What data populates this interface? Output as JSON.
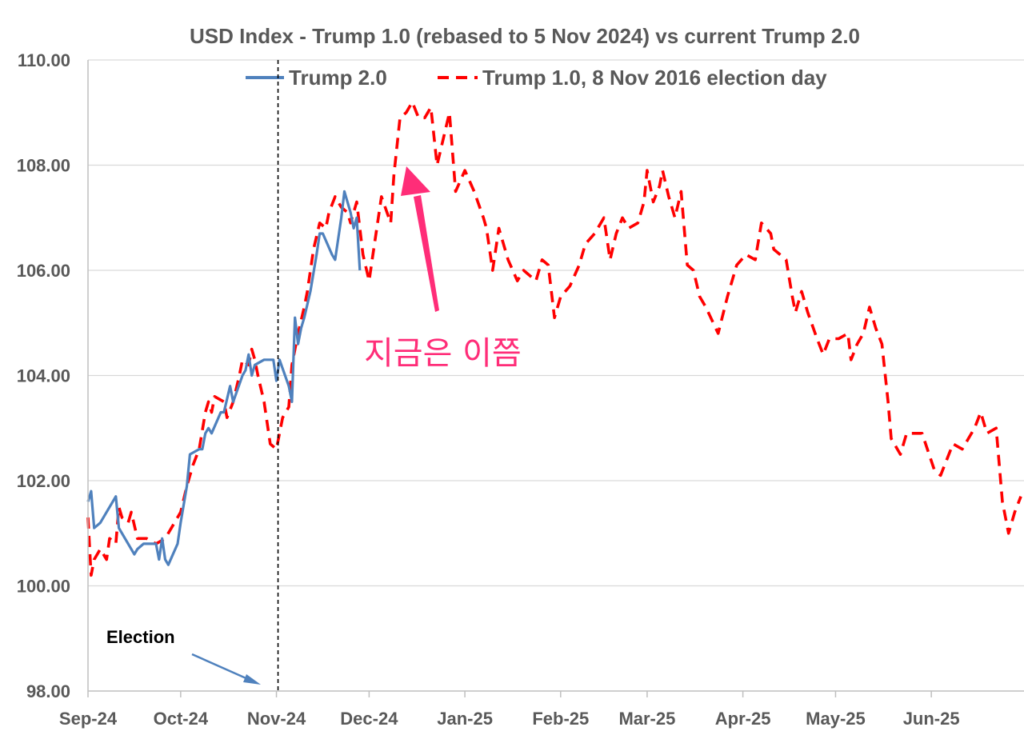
{
  "chart_data": {
    "type": "line",
    "title": "USD Index - Trump 1.0  (rebased to 5 Nov 2024) vs current Trump 2.0",
    "xlabel": "",
    "ylabel": "",
    "ylim": [
      98,
      110
    ],
    "y_ticks": [
      "98.00",
      "100.00",
      "102.00",
      "104.00",
      "106.00",
      "108.00",
      "110.00"
    ],
    "x_ticks": [
      "Sep-24",
      "Oct-24",
      "Nov-24",
      "Dec-24",
      "Jan-25",
      "Feb-25",
      "Mar-25",
      "Apr-25",
      "May-25",
      "Jun-25"
    ],
    "x_tick_dates": [
      "2024-09-01",
      "2024-10-01",
      "2024-11-01",
      "2024-12-01",
      "2025-01-01",
      "2025-02-01",
      "2025-03-01",
      "2025-04-01",
      "2025-05-01",
      "2025-06-01"
    ],
    "xlim": [
      "2024-09-01",
      "2025-06-30"
    ],
    "grid": true,
    "legend_position": "top",
    "series": [
      {
        "name": "Trump 2.0",
        "style": "solid",
        "color": "#4f81bd",
        "points": [
          [
            "2024-09-01",
            101.6
          ],
          [
            "2024-09-02",
            101.8
          ],
          [
            "2024-09-03",
            101.1
          ],
          [
            "2024-09-05",
            101.2
          ],
          [
            "2024-09-09",
            101.6
          ],
          [
            "2024-09-10",
            101.7
          ],
          [
            "2024-09-11",
            101.1
          ],
          [
            "2024-09-13",
            100.9
          ],
          [
            "2024-09-14",
            100.8
          ],
          [
            "2024-09-16",
            100.6
          ],
          [
            "2024-09-17",
            100.7
          ],
          [
            "2024-09-19",
            100.8
          ],
          [
            "2024-09-23",
            100.8
          ],
          [
            "2024-09-24",
            100.5
          ],
          [
            "2024-09-25",
            100.9
          ],
          [
            "2024-09-26",
            100.5
          ],
          [
            "2024-09-27",
            100.4
          ],
          [
            "2024-09-30",
            100.8
          ],
          [
            "2024-10-01",
            101.2
          ],
          [
            "2024-10-03",
            101.9
          ],
          [
            "2024-10-04",
            102.5
          ],
          [
            "2024-10-07",
            102.6
          ],
          [
            "2024-10-08",
            102.6
          ],
          [
            "2024-10-09",
            102.9
          ],
          [
            "2024-10-10",
            103.0
          ],
          [
            "2024-10-11",
            102.9
          ],
          [
            "2024-10-14",
            103.3
          ],
          [
            "2024-10-15",
            103.3
          ],
          [
            "2024-10-17",
            103.8
          ],
          [
            "2024-10-18",
            103.5
          ],
          [
            "2024-10-21",
            104.0
          ],
          [
            "2024-10-22",
            104.1
          ],
          [
            "2024-10-23",
            104.4
          ],
          [
            "2024-10-24",
            104.0
          ],
          [
            "2024-10-25",
            104.2
          ],
          [
            "2024-10-28",
            104.3
          ],
          [
            "2024-10-31",
            104.3
          ],
          [
            "2024-11-01",
            103.9
          ],
          [
            "2024-11-02",
            104.3
          ],
          [
            "2024-11-05",
            103.8
          ],
          [
            "2024-11-06",
            103.5
          ],
          [
            "2024-11-07",
            105.1
          ],
          [
            "2024-11-08",
            104.6
          ],
          [
            "2024-11-09",
            104.9
          ],
          [
            "2024-11-10",
            105.1
          ],
          [
            "2024-11-12",
            105.6
          ],
          [
            "2024-11-14",
            106.3
          ],
          [
            "2024-11-15",
            106.7
          ],
          [
            "2024-11-16",
            106.7
          ],
          [
            "2024-11-19",
            106.3
          ],
          [
            "2024-11-20",
            106.2
          ],
          [
            "2024-11-22",
            107.0
          ],
          [
            "2024-11-23",
            107.5
          ],
          [
            "2024-11-25",
            107.1
          ],
          [
            "2024-11-26",
            106.8
          ],
          [
            "2024-11-27",
            107.0
          ],
          [
            "2024-11-28",
            106.0
          ]
        ]
      },
      {
        "name": "Trump 1.0, 8 Nov 2016 election day",
        "style": "dashed",
        "color": "#ff0000",
        "points": [
          [
            "2024-09-01",
            101.3
          ],
          [
            "2024-09-02",
            100.2
          ],
          [
            "2024-09-03",
            100.5
          ],
          [
            "2024-09-05",
            100.7
          ],
          [
            "2024-09-07",
            100.5
          ],
          [
            "2024-09-08",
            100.9
          ],
          [
            "2024-09-10",
            100.8
          ],
          [
            "2024-09-11",
            101.5
          ],
          [
            "2024-09-12",
            101.3
          ],
          [
            "2024-09-14",
            101.2
          ],
          [
            "2024-09-15",
            101.4
          ],
          [
            "2024-09-17",
            100.9
          ],
          [
            "2024-09-20",
            100.9
          ],
          [
            "2024-09-23",
            100.8
          ],
          [
            "2024-09-26",
            100.9
          ],
          [
            "2024-09-29",
            101.2
          ],
          [
            "2024-10-01",
            101.4
          ],
          [
            "2024-10-03",
            101.9
          ],
          [
            "2024-10-05",
            102.3
          ],
          [
            "2024-10-07",
            102.6
          ],
          [
            "2024-10-09",
            103.3
          ],
          [
            "2024-10-10",
            103.5
          ],
          [
            "2024-10-11",
            103.3
          ],
          [
            "2024-10-12",
            103.6
          ],
          [
            "2024-10-15",
            103.5
          ],
          [
            "2024-10-16",
            103.2
          ],
          [
            "2024-10-18",
            103.5
          ],
          [
            "2024-10-20",
            104.0
          ],
          [
            "2024-10-21",
            104.3
          ],
          [
            "2024-10-23",
            104.2
          ],
          [
            "2024-10-24",
            104.5
          ],
          [
            "2024-10-25",
            104.3
          ],
          [
            "2024-10-26",
            104.0
          ],
          [
            "2024-10-28",
            103.5
          ],
          [
            "2024-10-30",
            102.7
          ],
          [
            "2024-11-01",
            102.6
          ],
          [
            "2024-11-03",
            103.2
          ],
          [
            "2024-11-05",
            103.4
          ],
          [
            "2024-11-06",
            104.2
          ],
          [
            "2024-11-08",
            104.8
          ],
          [
            "2024-11-10",
            105.3
          ],
          [
            "2024-11-11",
            105.6
          ],
          [
            "2024-11-13",
            106.4
          ],
          [
            "2024-11-15",
            106.9
          ],
          [
            "2024-11-17",
            106.8
          ],
          [
            "2024-11-18",
            107.1
          ],
          [
            "2024-11-20",
            107.4
          ],
          [
            "2024-11-22",
            107.2
          ],
          [
            "2024-11-24",
            107.1
          ],
          [
            "2024-11-25",
            106.9
          ],
          [
            "2024-11-27",
            107.3
          ],
          [
            "2024-11-29",
            106.3
          ],
          [
            "2024-12-01",
            105.8
          ],
          [
            "2024-12-02",
            106.2
          ],
          [
            "2024-12-05",
            107.4
          ],
          [
            "2024-12-08",
            106.9
          ],
          [
            "2024-12-09",
            107.8
          ],
          [
            "2024-12-11",
            108.9
          ],
          [
            "2024-12-13",
            109.0
          ],
          [
            "2024-12-15",
            109.2
          ],
          [
            "2024-12-17",
            108.9
          ],
          [
            "2024-12-19",
            108.9
          ],
          [
            "2024-12-21",
            109.1
          ],
          [
            "2024-12-23",
            108.0
          ],
          [
            "2024-12-25",
            108.5
          ],
          [
            "2024-12-27",
            109.0
          ],
          [
            "2024-12-29",
            107.5
          ],
          [
            "2025-01-01",
            107.9
          ],
          [
            "2025-01-04",
            107.5
          ],
          [
            "2025-01-07",
            107.0
          ],
          [
            "2025-01-08",
            106.8
          ],
          [
            "2025-01-10",
            106.0
          ],
          [
            "2025-01-12",
            106.8
          ],
          [
            "2025-01-15",
            106.2
          ],
          [
            "2025-01-18",
            105.8
          ],
          [
            "2025-01-20",
            106.0
          ],
          [
            "2025-01-24",
            105.8
          ],
          [
            "2025-01-26",
            106.2
          ],
          [
            "2025-01-28",
            106.1
          ],
          [
            "2025-01-30",
            105.1
          ],
          [
            "2025-02-01",
            105.5
          ],
          [
            "2025-02-04",
            105.7
          ],
          [
            "2025-02-07",
            106.1
          ],
          [
            "2025-02-09",
            106.5
          ],
          [
            "2025-02-12",
            106.7
          ],
          [
            "2025-02-15",
            107.0
          ],
          [
            "2025-02-17",
            106.2
          ],
          [
            "2025-02-19",
            106.7
          ],
          [
            "2025-02-21",
            107.0
          ],
          [
            "2025-02-23",
            106.8
          ],
          [
            "2025-02-26",
            106.9
          ],
          [
            "2025-02-28",
            107.3
          ],
          [
            "2025-03-01",
            107.9
          ],
          [
            "2025-03-03",
            107.3
          ],
          [
            "2025-03-05",
            107.6
          ],
          [
            "2025-03-06",
            107.9
          ],
          [
            "2025-03-08",
            107.4
          ],
          [
            "2025-03-10",
            107.0
          ],
          [
            "2025-03-12",
            107.5
          ],
          [
            "2025-03-14",
            106.1
          ],
          [
            "2025-03-16",
            106.0
          ],
          [
            "2025-03-18",
            105.5
          ],
          [
            "2025-03-20",
            105.3
          ],
          [
            "2025-03-24",
            104.8
          ],
          [
            "2025-03-27",
            105.5
          ],
          [
            "2025-03-30",
            106.1
          ],
          [
            "2025-04-02",
            106.3
          ],
          [
            "2025-04-05",
            106.2
          ],
          [
            "2025-04-07",
            106.9
          ],
          [
            "2025-04-10",
            106.7
          ],
          [
            "2025-04-11",
            106.4
          ],
          [
            "2025-04-13",
            106.3
          ],
          [
            "2025-04-15",
            106.2
          ],
          [
            "2025-04-17",
            105.5
          ],
          [
            "2025-04-18",
            105.2
          ],
          [
            "2025-04-20",
            105.6
          ],
          [
            "2025-04-22",
            105.2
          ],
          [
            "2025-04-25",
            104.7
          ],
          [
            "2025-04-27",
            104.4
          ],
          [
            "2025-04-29",
            104.7
          ],
          [
            "2025-05-02",
            104.7
          ],
          [
            "2025-05-05",
            104.8
          ],
          [
            "2025-05-06",
            104.3
          ],
          [
            "2025-05-08",
            104.6
          ],
          [
            "2025-05-10",
            104.8
          ],
          [
            "2025-05-12",
            105.3
          ],
          [
            "2025-05-14",
            104.9
          ],
          [
            "2025-05-16",
            104.6
          ],
          [
            "2025-05-18",
            103.5
          ],
          [
            "2025-05-19",
            102.8
          ],
          [
            "2025-05-21",
            102.6
          ],
          [
            "2025-05-22",
            102.5
          ],
          [
            "2025-05-24",
            102.9
          ],
          [
            "2025-05-26",
            102.9
          ],
          [
            "2025-05-29",
            102.9
          ],
          [
            "2025-06-02",
            102.2
          ],
          [
            "2025-06-04",
            102.1
          ],
          [
            "2025-06-06",
            102.4
          ],
          [
            "2025-06-08",
            102.7
          ],
          [
            "2025-06-11",
            102.6
          ],
          [
            "2025-06-13",
            102.8
          ],
          [
            "2025-06-15",
            103.0
          ],
          [
            "2025-06-17",
            103.3
          ],
          [
            "2025-06-19",
            102.9
          ],
          [
            "2025-06-22",
            103.0
          ],
          [
            "2025-06-24",
            101.6
          ],
          [
            "2025-06-26",
            101.0
          ],
          [
            "2025-06-28",
            101.4
          ],
          [
            "2025-06-30",
            101.7
          ]
        ]
      }
    ],
    "annotations": [
      {
        "text": "Election",
        "color": "#000000"
      },
      {
        "text": "지금은 이쯤",
        "color": "#ff2d78"
      }
    ],
    "election_line_date": "2024-11-01"
  }
}
